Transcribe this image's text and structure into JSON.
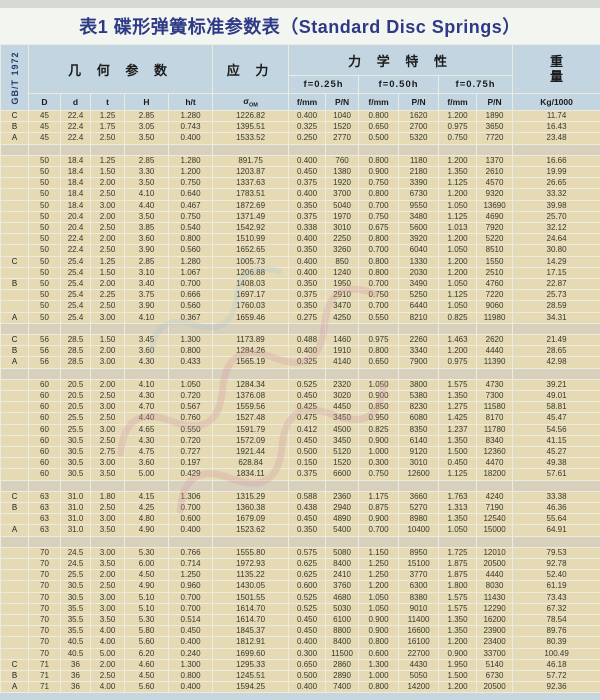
{
  "title": "表1 碟形弹簧标准参数表（Standard Disc Springs）",
  "standard_label": "GB/T 1972",
  "header": {
    "geometry_group": "几 何 参 数",
    "stress_group": "应 力",
    "mechanical_group": "力 学 特 性",
    "weight_line1": "重",
    "weight_line2": "量",
    "deflection_cols": [
      "f=0.25h",
      "f=0.50h",
      "f=0.75h"
    ],
    "geometry_cols": [
      "D",
      "d",
      "t",
      "H",
      "h/t"
    ],
    "sigma": "σ",
    "sigma_sub": "OM",
    "fp_cols": [
      "f/mm",
      "P/N"
    ],
    "weight_unit": "Kg/1000"
  },
  "colors": {
    "header_bg": "#c2d5e0",
    "row_bg": "#e5dab3",
    "spacer_bg": "#d8d0bb",
    "title_color": "#2e3a86"
  },
  "table": {
    "rows": [
      {
        "grade": "C",
        "cells": [
          "45",
          "22.4",
          "1.25",
          "2.85",
          "1.280",
          "1226.82",
          "0.400",
          "1040",
          "0.800",
          "1620",
          "1.200",
          "1890",
          "11.74"
        ]
      },
      {
        "grade": "B",
        "cells": [
          "45",
          "22.4",
          "1.75",
          "3.05",
          "0.743",
          "1395.51",
          "0.325",
          "1520",
          "0.650",
          "2700",
          "0.975",
          "3650",
          "16.43"
        ]
      },
      {
        "grade": "A",
        "cells": [
          "45",
          "22.4",
          "2.50",
          "3.50",
          "0.400",
          "1533.52",
          "0.250",
          "2770",
          "0.500",
          "5320",
          "0.750",
          "7720",
          "23.48"
        ]
      },
      {
        "spacer": true
      },
      {
        "grade": "",
        "cells": [
          "50",
          "18.4",
          "1.25",
          "2.85",
          "1.280",
          "891.75",
          "0.400",
          "760",
          "0.800",
          "1180",
          "1.200",
          "1370",
          "16.66"
        ]
      },
      {
        "grade": "",
        "cells": [
          "50",
          "18.4",
          "1.50",
          "3.30",
          "1.200",
          "1203.87",
          "0.450",
          "1380",
          "0.900",
          "2180",
          "1.350",
          "2610",
          "19.99"
        ]
      },
      {
        "grade": "",
        "cells": [
          "50",
          "18.4",
          "2.00",
          "3.50",
          "0.750",
          "1337.63",
          "0.375",
          "1920",
          "0.750",
          "3390",
          "1.125",
          "4570",
          "26.65"
        ]
      },
      {
        "grade": "",
        "cells": [
          "50",
          "18.4",
          "2.50",
          "4.10",
          "0.640",
          "1783.51",
          "0.400",
          "3700",
          "0.800",
          "6730",
          "1.200",
          "9320",
          "33.32"
        ]
      },
      {
        "grade": "",
        "cells": [
          "50",
          "18.4",
          "3.00",
          "4.40",
          "0.467",
          "1872.69",
          "0.350",
          "5040",
          "0.700",
          "9550",
          "1.050",
          "13690",
          "39.98"
        ]
      },
      {
        "grade": "",
        "cells": [
          "50",
          "20.4",
          "2.00",
          "3.50",
          "0.750",
          "1371.49",
          "0.375",
          "1970",
          "0.750",
          "3480",
          "1.125",
          "4690",
          "25.70"
        ]
      },
      {
        "grade": "",
        "cells": [
          "50",
          "20.4",
          "2.50",
          "3.85",
          "0.540",
          "1542.92",
          "0.338",
          "3010",
          "0.675",
          "5600",
          "1.013",
          "7920",
          "32.12"
        ]
      },
      {
        "grade": "",
        "cells": [
          "50",
          "22.4",
          "2.00",
          "3.60",
          "0.800",
          "1510.99",
          "0.400",
          "2250",
          "0.800",
          "3920",
          "1.200",
          "5220",
          "24.64"
        ]
      },
      {
        "grade": "",
        "cells": [
          "50",
          "22.4",
          "2.50",
          "3.90",
          "0.560",
          "1652.65",
          "0.350",
          "3260",
          "0.700",
          "6040",
          "1.050",
          "8510",
          "30.80"
        ]
      },
      {
        "grade": "C",
        "cells": [
          "50",
          "25.4",
          "1.25",
          "2.85",
          "1.280",
          "1005.73",
          "0.400",
          "850",
          "0.800",
          "1330",
          "1.200",
          "1550",
          "14.29"
        ]
      },
      {
        "grade": "",
        "cells": [
          "50",
          "25.4",
          "1.50",
          "3.10",
          "1.067",
          "1206.88",
          "0.400",
          "1240",
          "0.800",
          "2030",
          "1.200",
          "2510",
          "17.15"
        ]
      },
      {
        "grade": "B",
        "cells": [
          "50",
          "25.4",
          "2.00",
          "3.40",
          "0.700",
          "1408.03",
          "0.350",
          "1950",
          "0.700",
          "3490",
          "1.050",
          "4760",
          "22.87"
        ]
      },
      {
        "grade": "",
        "cells": [
          "50",
          "25.4",
          "2.25",
          "3.75",
          "0.666",
          "1697.17",
          "0.375",
          "2910",
          "0.750",
          "5250",
          "1.125",
          "7220",
          "25.73"
        ]
      },
      {
        "grade": "",
        "cells": [
          "50",
          "25.4",
          "2.50",
          "3.90",
          "0.560",
          "1760.03",
          "0.350",
          "3470",
          "0.700",
          "6440",
          "1.050",
          "9060",
          "28.59"
        ]
      },
      {
        "grade": "A",
        "cells": [
          "50",
          "25.4",
          "3.00",
          "4.10",
          "0.367",
          "1659.46",
          "0.275",
          "4250",
          "0.550",
          "8210",
          "0.825",
          "11980",
          "34.31"
        ]
      },
      {
        "spacer": true
      },
      {
        "grade": "C",
        "cells": [
          "56",
          "28.5",
          "1.50",
          "3.45",
          "1.300",
          "1173.89",
          "0.488",
          "1460",
          "0.975",
          "2260",
          "1.463",
          "2620",
          "21.49"
        ]
      },
      {
        "grade": "B",
        "cells": [
          "56",
          "28.5",
          "2.00",
          "3.60",
          "0.800",
          "1284.26",
          "0.400",
          "1910",
          "0.800",
          "3340",
          "1.200",
          "4440",
          "28.65"
        ]
      },
      {
        "grade": "A",
        "cells": [
          "56",
          "28.5",
          "3.00",
          "4.30",
          "0.433",
          "1565.19",
          "0.325",
          "4140",
          "0.650",
          "7900",
          "0.975",
          "11390",
          "42.98"
        ]
      },
      {
        "spacer": true
      },
      {
        "grade": "",
        "cells": [
          "60",
          "20.5",
          "2.00",
          "4.10",
          "1.050",
          "1284.34",
          "0.525",
          "2320",
          "1.050",
          "3800",
          "1.575",
          "4730",
          "39.21"
        ]
      },
      {
        "grade": "",
        "cells": [
          "60",
          "20.5",
          "2.50",
          "4.30",
          "0.720",
          "1376.08",
          "0.450",
          "3020",
          "0.900",
          "5380",
          "1.350",
          "7300",
          "49.01"
        ]
      },
      {
        "grade": "",
        "cells": [
          "60",
          "20.5",
          "3.00",
          "4.70",
          "0.567",
          "1559.56",
          "0.425",
          "4450",
          "0.850",
          "8230",
          "1.275",
          "11580",
          "58.81"
        ]
      },
      {
        "grade": "",
        "cells": [
          "60",
          "25.5",
          "2.50",
          "4.40",
          "0.760",
          "1527.48",
          "0.475",
          "3450",
          "0.950",
          "6080",
          "1.425",
          "8170",
          "45.47"
        ]
      },
      {
        "grade": "",
        "cells": [
          "60",
          "25.5",
          "3.00",
          "4.65",
          "0.550",
          "1591.79",
          "0.412",
          "4500",
          "0.825",
          "8350",
          "1.237",
          "11780",
          "54.56"
        ]
      },
      {
        "grade": "",
        "cells": [
          "60",
          "30.5",
          "2.50",
          "4.30",
          "0.720",
          "1572.09",
          "0.450",
          "3450",
          "0.900",
          "6140",
          "1.350",
          "8340",
          "41.15"
        ]
      },
      {
        "grade": "",
        "cells": [
          "60",
          "30.5",
          "2.75",
          "4.75",
          "0.727",
          "1921.44",
          "0.500",
          "5120",
          "1.000",
          "9120",
          "1.500",
          "12360",
          "45.27"
        ]
      },
      {
        "grade": "",
        "cells": [
          "60",
          "30.5",
          "3.00",
          "3.60",
          "0.197",
          "628.84",
          "0.150",
          "1520",
          "0.300",
          "3010",
          "0.450",
          "4470",
          "49.38"
        ]
      },
      {
        "grade": "",
        "cells": [
          "60",
          "30.5",
          "3.50",
          "5.00",
          "0.429",
          "1834.11",
          "0.375",
          "6600",
          "0.750",
          "12600",
          "1.125",
          "18200",
          "57.61"
        ]
      },
      {
        "spacer": true
      },
      {
        "grade": "C",
        "cells": [
          "63",
          "31.0",
          "1.80",
          "4.15",
          "1.306",
          "1315.29",
          "0.588",
          "2360",
          "1.175",
          "3660",
          "1.763",
          "4240",
          "33.38"
        ]
      },
      {
        "grade": "B",
        "cells": [
          "63",
          "31.0",
          "2.50",
          "4.25",
          "0.700",
          "1360.38",
          "0.438",
          "2940",
          "0.875",
          "5270",
          "1.313",
          "7190",
          "46.36"
        ]
      },
      {
        "grade": "",
        "cells": [
          "63",
          "31.0",
          "3.00",
          "4.80",
          "0.600",
          "1679.09",
          "0.450",
          "4890",
          "0.900",
          "8980",
          "1.350",
          "12540",
          "55.64"
        ]
      },
      {
        "grade": "A",
        "cells": [
          "63",
          "31.0",
          "3.50",
          "4.90",
          "0.400",
          "1523.62",
          "0.350",
          "5400",
          "0.700",
          "10400",
          "1.050",
          "15000",
          "64.91"
        ]
      },
      {
        "spacer": true
      },
      {
        "grade": "",
        "cells": [
          "70",
          "24.5",
          "3.00",
          "5.30",
          "0.766",
          "1555.80",
          "0.575",
          "5080",
          "1.150",
          "8950",
          "1.725",
          "12010",
          "79.53"
        ]
      },
      {
        "grade": "",
        "cells": [
          "70",
          "24.5",
          "3.50",
          "6.00",
          "0.714",
          "1972.93",
          "0.625",
          "8400",
          "1.250",
          "15100",
          "1.875",
          "20500",
          "92.78"
        ]
      },
      {
        "grade": "",
        "cells": [
          "70",
          "25.5",
          "2.00",
          "4.50",
          "1.250",
          "1135.22",
          "0.625",
          "2410",
          "1.250",
          "3770",
          "1.875",
          "4440",
          "52.40"
        ]
      },
      {
        "grade": "",
        "cells": [
          "70",
          "30.5",
          "2.50",
          "4.90",
          "0.960",
          "1430.05",
          "0.600",
          "3760",
          "1.200",
          "6300",
          "1.800",
          "8030",
          "61.19"
        ]
      },
      {
        "grade": "",
        "cells": [
          "70",
          "30.5",
          "3.00",
          "5.10",
          "0.700",
          "1501.55",
          "0.525",
          "4680",
          "1.050",
          "8380",
          "1.575",
          "11430",
          "73.43"
        ]
      },
      {
        "grade": "",
        "cells": [
          "70",
          "35.5",
          "3.00",
          "5.10",
          "0.700",
          "1614.70",
          "0.525",
          "5030",
          "1.050",
          "9010",
          "1.575",
          "12290",
          "67.32"
        ]
      },
      {
        "grade": "",
        "cells": [
          "70",
          "35.5",
          "3.50",
          "5.30",
          "0.514",
          "1614.70",
          "0.450",
          "6100",
          "0.900",
          "11400",
          "1.350",
          "16200",
          "78.54"
        ]
      },
      {
        "grade": "",
        "cells": [
          "70",
          "35.5",
          "4.00",
          "5.80",
          "0.450",
          "1845.37",
          "0.450",
          "8800",
          "0.900",
          "16600",
          "1.350",
          "23900",
          "89.76"
        ]
      },
      {
        "grade": "",
        "cells": [
          "70",
          "40.5",
          "4.00",
          "5.60",
          "0.400",
          "1812.91",
          "0.400",
          "8400",
          "0.800",
          "16100",
          "1.200",
          "23400",
          "80.39"
        ]
      },
      {
        "grade": "",
        "cells": [
          "70",
          "40.5",
          "5.00",
          "6.20",
          "0.240",
          "1699.60",
          "0.300",
          "11500",
          "0.600",
          "22700",
          "0.900",
          "33700",
          "100.49"
        ]
      },
      {
        "grade": "C",
        "cells": [
          "71",
          "36",
          "2.00",
          "4.60",
          "1.300",
          "1295.33",
          "0.650",
          "2860",
          "1.300",
          "4430",
          "1.950",
          "5140",
          "46.18"
        ]
      },
      {
        "grade": "B",
        "cells": [
          "71",
          "36",
          "2.50",
          "4.50",
          "0.800",
          "1245.51",
          "0.500",
          "2890",
          "1.000",
          "5050",
          "1.500",
          "6730",
          "57.72"
        ]
      },
      {
        "grade": "A",
        "cells": [
          "71",
          "36",
          "4.00",
          "5.60",
          "0.400",
          "1594.25",
          "0.400",
          "7400",
          "0.800",
          "14200",
          "1.200",
          "20500",
          "92.36"
        ]
      }
    ]
  }
}
